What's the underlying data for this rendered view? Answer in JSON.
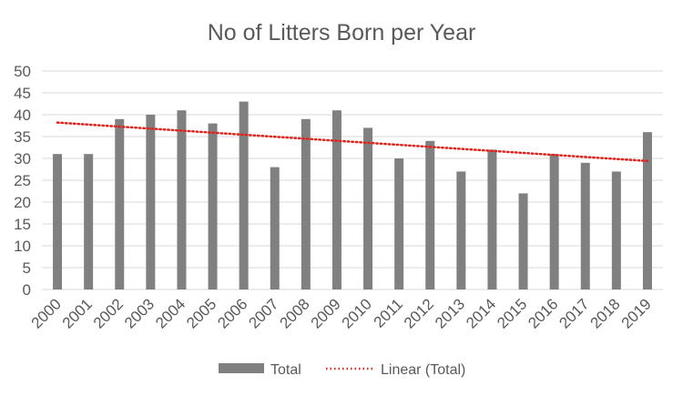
{
  "chart_data": {
    "type": "bar",
    "title": "No of Litters Born per Year",
    "xlabel": "",
    "ylabel": "",
    "categories": [
      "2000",
      "2001",
      "2002",
      "2003",
      "2004",
      "2005",
      "2006",
      "2007",
      "2008",
      "2009",
      "2010",
      "2011",
      "2012",
      "2013",
      "2014",
      "2015",
      "2016",
      "2017",
      "2018",
      "2019"
    ],
    "series": [
      {
        "name": "Total",
        "color": "#808080",
        "values": [
          31,
          31,
          39,
          40,
          41,
          38,
          43,
          28,
          39,
          41,
          37,
          30,
          34,
          27,
          32,
          22,
          31,
          29,
          27,
          36
        ]
      }
    ],
    "trendline": {
      "name": "Linear (Total)",
      "color": "#e0231c",
      "style": "dotted",
      "type": "linear"
    },
    "ylim": [
      0,
      50
    ],
    "yticks": [
      0,
      5,
      10,
      15,
      20,
      25,
      30,
      35,
      40,
      45,
      50
    ],
    "grid": true,
    "legend": "bottom",
    "x_tick_rotation": -45
  }
}
